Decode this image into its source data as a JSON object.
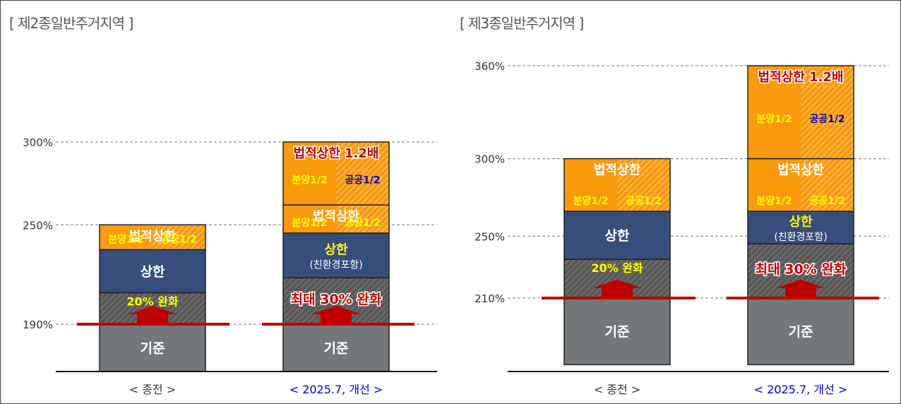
{
  "colors": {
    "base": "#75787a",
    "relax": "#595959",
    "upper": "#374e7c",
    "legal": "#f79a0e",
    "arrow": "#c00000",
    "yellow_text": "#ffff00",
    "blue_text": "#0000c8",
    "red_text": "#c00000",
    "white_text": "#ffffff",
    "xlabel_new": "#0000cc",
    "xlabel_old": "#333333"
  },
  "chart_data": [
    {
      "type": "bar",
      "stacked": true,
      "title": "[ 제2종일반주거지역 ]",
      "categories": [
        "< 종전 >",
        "< 2025.7, 개선 >"
      ],
      "yticks": [
        190,
        250,
        300
      ],
      "ytick_labels": [
        "190%",
        "250%",
        "300%"
      ],
      "baseline_mark": 190,
      "bars": [
        {
          "category": "< 종전 >",
          "segments": [
            {
              "kind": "base",
              "from": 155,
              "to": 190,
              "label": "기준"
            },
            {
              "kind": "relax",
              "from": 190,
              "to": 209,
              "label": "20% 완화"
            },
            {
              "kind": "upper",
              "from": 209,
              "to": 235,
              "label": "상한"
            },
            {
              "kind": "legal",
              "from": 235,
              "to": 250,
              "label": "법적상한",
              "left": "분양1/2",
              "right": "공공1/2"
            }
          ]
        },
        {
          "category": "< 2025.7, 개선 >",
          "segments": [
            {
              "kind": "base",
              "from": 155,
              "to": 190,
              "label": "기준"
            },
            {
              "kind": "relax",
              "from": 190,
              "to": 218,
              "label": "최대 30% 완화"
            },
            {
              "kind": "upper",
              "from": 218,
              "to": 245,
              "label": "상한",
              "sub": "(친환경포함)"
            },
            {
              "kind": "legal",
              "from": 245,
              "to": 262,
              "label": "법적상한",
              "left": "분양1/2",
              "right": "공공1/2"
            },
            {
              "kind": "legal",
              "from": 262,
              "to": 300,
              "label": "법적상한 1.2배",
              "left": "분양1/2",
              "right": "공공1/2"
            }
          ]
        }
      ]
    },
    {
      "type": "bar",
      "stacked": true,
      "title": "[ 제3종일반주거지역 ]",
      "categories": [
        "< 종전 >",
        "< 2025.7, 개선 >"
      ],
      "yticks": [
        210,
        250,
        300,
        360
      ],
      "ytick_labels": [
        "210%",
        "250%",
        "300%",
        "360%"
      ],
      "baseline_mark": 210,
      "bars": [
        {
          "category": "< 종전 >",
          "segments": [
            {
              "kind": "base",
              "from": 167,
              "to": 210,
              "label": "기준"
            },
            {
              "kind": "relax",
              "from": 210,
              "to": 235,
              "label": "20% 완화"
            },
            {
              "kind": "upper",
              "from": 235,
              "to": 266,
              "label": "상한"
            },
            {
              "kind": "legal",
              "from": 266,
              "to": 300,
              "label": "법적상한",
              "left": "분양1/2",
              "right": "공공1/2"
            }
          ]
        },
        {
          "category": "< 2025.7, 개선 >",
          "segments": [
            {
              "kind": "base",
              "from": 167,
              "to": 210,
              "label": "기준"
            },
            {
              "kind": "relax",
              "from": 210,
              "to": 245,
              "label": "최대 30% 완화"
            },
            {
              "kind": "upper",
              "from": 245,
              "to": 266,
              "label": "상한",
              "sub": "(친환경포함)"
            },
            {
              "kind": "legal",
              "from": 266,
              "to": 300,
              "label": "법적상한",
              "left": "분양1/2",
              "right": "공공1/2"
            },
            {
              "kind": "legal",
              "from": 300,
              "to": 360,
              "label": "법적상한 1.2배",
              "left": "분양1/2",
              "right": "공공1/2"
            }
          ]
        }
      ]
    }
  ]
}
